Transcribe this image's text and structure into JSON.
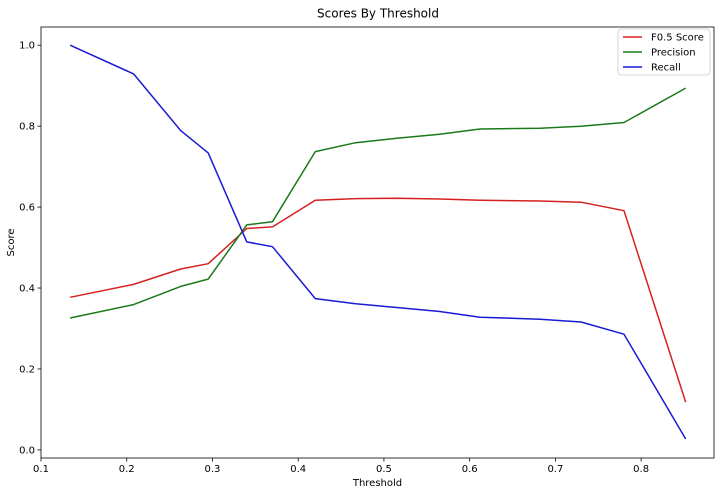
{
  "chart_data": {
    "type": "line",
    "title": "Scores By Threshold",
    "xlabel": "Threshold",
    "ylabel": "Score",
    "xlim": [
      0.1,
      0.885
    ],
    "ylim": [
      -0.02,
      1.045
    ],
    "xticks": [
      0.1,
      0.2,
      0.3,
      0.4,
      0.5,
      0.6,
      0.7,
      0.8
    ],
    "xtick_labels": [
      "0.1",
      "0.2",
      "0.3",
      "0.4",
      "0.5",
      "0.6",
      "0.7",
      "0.8"
    ],
    "yticks": [
      0.0,
      0.2,
      0.4,
      0.6,
      0.8,
      1.0
    ],
    "ytick_labels": [
      "0.0",
      "0.2",
      "0.4",
      "0.6",
      "0.8",
      "1.0"
    ],
    "legend_position": "top-right",
    "x": [
      0.134,
      0.208,
      0.263,
      0.295,
      0.34,
      0.37,
      0.42,
      0.467,
      0.515,
      0.565,
      0.612,
      0.682,
      0.73,
      0.78,
      0.852
    ],
    "series": [
      {
        "name": "F0.5 Score",
        "color": "#d62020",
        "values": [
          0.377,
          0.409,
          0.447,
          0.46,
          0.547,
          0.551,
          0.617,
          0.621,
          0.622,
          0.62,
          0.617,
          0.615,
          0.612,
          0.591,
          0.118
        ]
      },
      {
        "name": "Precision",
        "color": "#1a7a1a",
        "values": [
          0.326,
          0.359,
          0.404,
          0.422,
          0.556,
          0.564,
          0.737,
          0.759,
          0.77,
          0.78,
          0.793,
          0.795,
          0.8,
          0.809,
          0.894
        ]
      },
      {
        "name": "Recall",
        "color": "#1a1ad6",
        "values": [
          1.0,
          0.929,
          0.789,
          0.734,
          0.514,
          0.502,
          0.374,
          0.361,
          0.352,
          0.342,
          0.328,
          0.323,
          0.316,
          0.286,
          0.027
        ]
      }
    ]
  }
}
